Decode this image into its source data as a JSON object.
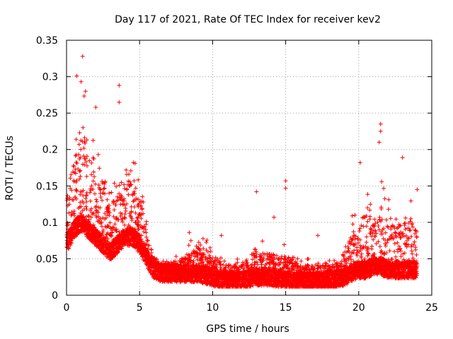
{
  "chart_data": {
    "type": "scatter",
    "title": "Day 117 of 2021, Rate Of TEC Index for receiver kev2",
    "xlabel": "GPS time / hours",
    "ylabel": "ROTI / TECUs",
    "xlim": [
      0,
      25
    ],
    "ylim": [
      0,
      0.35
    ],
    "x_ticks": [
      0,
      5,
      10,
      15,
      20,
      25
    ],
    "x_tick_labels": [
      "0",
      "5",
      "10",
      "15",
      "20",
      "25"
    ],
    "y_ticks": [
      0,
      0.05,
      0.1,
      0.15,
      0.2,
      0.25,
      0.3,
      0.35
    ],
    "y_tick_labels": [
      "0",
      "0.05",
      "0.1",
      "0.15",
      "0.2",
      "0.25",
      "0.3",
      "0.35"
    ],
    "grid": true,
    "marker": "+",
    "color": "#ff0000",
    "profile_x": [
      0,
      0.5,
      1,
      1.5,
      2,
      2.5,
      3,
      3.5,
      4,
      4.5,
      5,
      5.5,
      6,
      6.5,
      7,
      8,
      9,
      10,
      10.5,
      11,
      12,
      13,
      14,
      15,
      16,
      17,
      18,
      19,
      19.5,
      20,
      20.5,
      21,
      21.5,
      22,
      22.5,
      23,
      23.5,
      24
    ],
    "profile_median": [
      0.07,
      0.09,
      0.1,
      0.09,
      0.08,
      0.07,
      0.06,
      0.07,
      0.08,
      0.08,
      0.07,
      0.05,
      0.035,
      0.03,
      0.03,
      0.03,
      0.03,
      0.025,
      0.02,
      0.02,
      0.02,
      0.025,
      0.025,
      0.02,
      0.02,
      0.02,
      0.02,
      0.025,
      0.03,
      0.035,
      0.035,
      0.04,
      0.04,
      0.035,
      0.035,
      0.035,
      0.035,
      0.035
    ],
    "profile_max": [
      0.17,
      0.22,
      0.3,
      0.25,
      0.2,
      0.2,
      0.15,
      0.17,
      0.19,
      0.19,
      0.17,
      0.1,
      0.06,
      0.05,
      0.05,
      0.06,
      0.09,
      0.07,
      0.06,
      0.05,
      0.05,
      0.08,
      0.07,
      0.07,
      0.05,
      0.05,
      0.05,
      0.06,
      0.12,
      0.13,
      0.15,
      0.13,
      0.16,
      0.14,
      0.12,
      0.14,
      0.13,
      0.14
    ],
    "notable_points": [
      {
        "x": 1.1,
        "y": 0.328
      },
      {
        "x": 0.7,
        "y": 0.301
      },
      {
        "x": 1.0,
        "y": 0.293
      },
      {
        "x": 1.3,
        "y": 0.28
      },
      {
        "x": 3.6,
        "y": 0.288
      },
      {
        "x": 3.6,
        "y": 0.265
      },
      {
        "x": 2.0,
        "y": 0.258
      },
      {
        "x": 21.5,
        "y": 0.235
      },
      {
        "x": 21.5,
        "y": 0.225
      },
      {
        "x": 21.4,
        "y": 0.21
      },
      {
        "x": 23.0,
        "y": 0.189
      },
      {
        "x": 20.1,
        "y": 0.182
      },
      {
        "x": 15.0,
        "y": 0.157
      },
      {
        "x": 15.0,
        "y": 0.147
      },
      {
        "x": 13.0,
        "y": 0.142
      },
      {
        "x": 14.2,
        "y": 0.107
      },
      {
        "x": 10.6,
        "y": 0.082
      },
      {
        "x": 8.4,
        "y": 0.086
      },
      {
        "x": 17.2,
        "y": 0.082
      },
      {
        "x": 24.0,
        "y": 0.145
      }
    ],
    "noise_amplitude": 0.012,
    "point_step_hours": 0.004
  }
}
